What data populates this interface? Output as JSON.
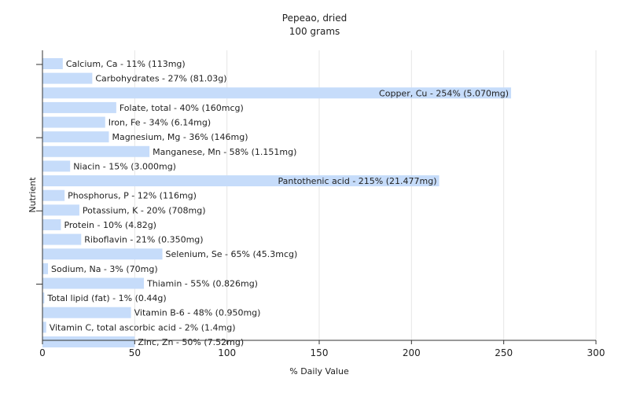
{
  "chart_data": {
    "type": "bar",
    "orientation": "horizontal",
    "title": "Pepeao, dried",
    "subtitle": "100 grams",
    "xlabel": "% Daily Value",
    "ylabel": "Nutrient",
    "xlim": [
      0,
      300
    ],
    "xticks": [
      0,
      50,
      100,
      150,
      200,
      250,
      300
    ],
    "grid": "vertical",
    "bar_color": "#c6dcfa",
    "categories": [
      "Calcium, Ca",
      "Carbohydrates",
      "Copper, Cu",
      "Folate, total",
      "Iron, Fe",
      "Magnesium, Mg",
      "Manganese, Mn",
      "Niacin",
      "Pantothenic acid",
      "Phosphorus, P",
      "Potassium, K",
      "Protein",
      "Riboflavin",
      "Selenium, Se",
      "Sodium, Na",
      "Thiamin",
      "Total lipid (fat)",
      "Vitamin B-6",
      "Vitamin C, total ascorbic acid",
      "Zinc, Zn"
    ],
    "values": [
      11,
      27,
      254,
      40,
      34,
      36,
      58,
      15,
      215,
      12,
      20,
      10,
      21,
      65,
      3,
      55,
      1,
      48,
      2,
      50
    ],
    "labels": [
      "Calcium, Ca - 11% (113mg)",
      "Carbohydrates - 27% (81.03g)",
      "Copper, Cu - 254% (5.070mg)",
      "Folate, total - 40% (160mcg)",
      "Iron, Fe - 34% (6.14mg)",
      "Magnesium, Mg - 36% (146mg)",
      "Manganese, Mn - 58% (1.151mg)",
      "Niacin - 15% (3.000mg)",
      "Pantothenic acid - 215% (21.477mg)",
      "Phosphorus, P - 12% (116mg)",
      "Potassium, K - 20% (708mg)",
      "Protein - 10% (4.82g)",
      "Riboflavin - 21% (0.350mg)",
      "Selenium, Se - 65% (45.3mcg)",
      "Sodium, Na - 3% (70mg)",
      "Thiamin - 55% (0.826mg)",
      "Total lipid (fat) - 1% (0.44g)",
      "Vitamin B-6 - 48% (0.950mg)",
      "Vitamin C, total ascorbic acid - 2% (1.4mg)",
      "Zinc, Zn - 50% (7.52mg)"
    ]
  }
}
